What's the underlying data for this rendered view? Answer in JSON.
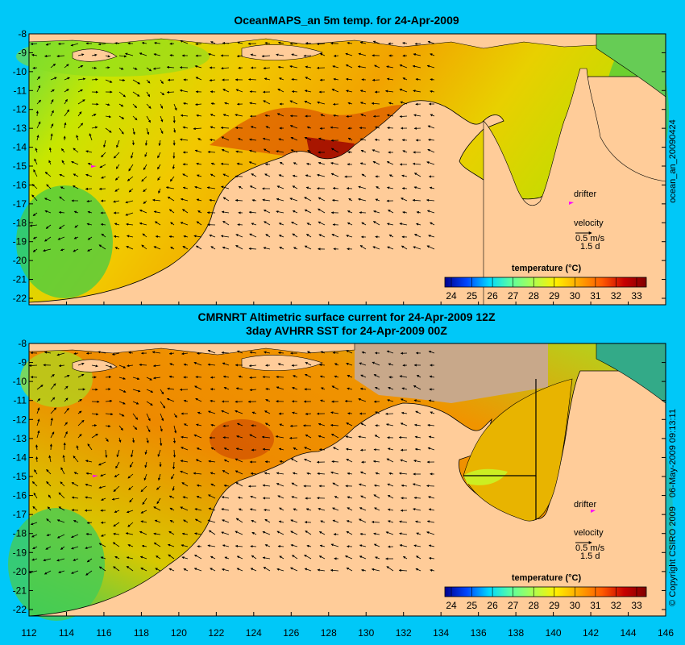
{
  "panels": [
    {
      "title_lines": [
        "OceanMAPS_an 5m temp. for 24-Apr-2009"
      ],
      "side_label": "ocean_an_20090424",
      "y_ticks": [
        "-8",
        "-9",
        "-10",
        "-11",
        "-12",
        "-13",
        "-14",
        "-15",
        "-16",
        "-17",
        "-18",
        "-19",
        "-20",
        "-21",
        "-22"
      ],
      "legend": {
        "drifter": "drifter",
        "velocity": "velocity",
        "scale_speed": "0.5 m/s",
        "scale_time": "1.5 d"
      },
      "colorbar": {
        "title": "temperature (°C)",
        "ticks": [
          "24",
          "25",
          "26",
          "27",
          "28",
          "29",
          "30",
          "31",
          "32",
          "33"
        ]
      }
    },
    {
      "title_lines": [
        "CMRNRT Altimetric surface current for 24-Apr-2009 12Z",
        "3day AVHRR SST for 24-Apr-2009 00Z"
      ],
      "side_label_1": "06-May-2009 09:13:11",
      "side_label_2": "© Copyright CSIRO 2009",
      "y_ticks": [
        "-8",
        "-9",
        "-10",
        "-11",
        "-12",
        "-13",
        "-14",
        "-15",
        "-16",
        "-17",
        "-18",
        "-19",
        "-20",
        "-21",
        "-22"
      ],
      "x_ticks": [
        "112",
        "114",
        "116",
        "118",
        "120",
        "122",
        "124",
        "126",
        "128",
        "130",
        "132",
        "134",
        "136",
        "138",
        "140",
        "142",
        "144",
        "146"
      ],
      "legend": {
        "drifter": "drifter",
        "velocity": "velocity",
        "scale_speed": "0.5 m/s",
        "scale_time": "1.5 d"
      },
      "colorbar": {
        "title": "temperature (°C)",
        "ticks": [
          "24",
          "25",
          "26",
          "27",
          "28",
          "29",
          "30",
          "31",
          "32",
          "33"
        ]
      }
    }
  ],
  "colors": {
    "background": "#00c8f8",
    "land": "#ffcc99",
    "colormap": [
      "#00008f",
      "#0047ff",
      "#00d8ff",
      "#5cff9f",
      "#afff4f",
      "#fff000",
      "#ffaa00",
      "#ff5a00",
      "#c80000",
      "#800000"
    ]
  }
}
